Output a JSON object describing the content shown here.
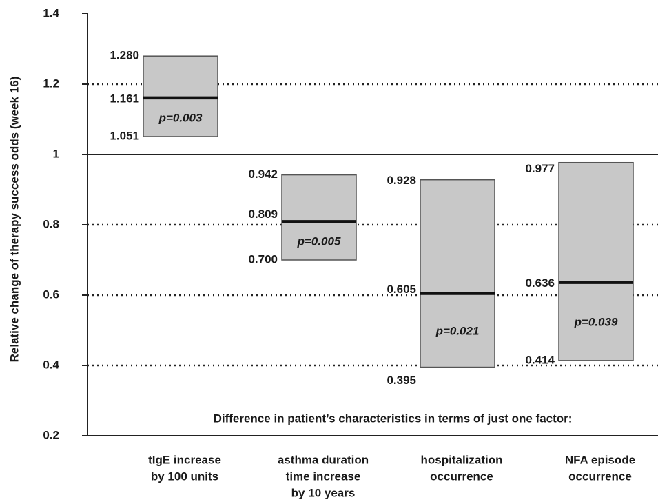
{
  "chart_data": {
    "type": "floating-bar",
    "y_axis_label": "Relative change of therapy success odds (week 16)",
    "x_axis_label": "Difference in patient’s characteristics in terms of just one factor:",
    "categories": [
      [
        "tIgE increase",
        "by 100 units"
      ],
      [
        "asthma duration",
        "time increase",
        "by 10 years"
      ],
      [
        "hospitalization",
        "occurrence"
      ],
      [
        "NFA episode",
        "occurrence"
      ]
    ],
    "values": [
      1.161,
      0.809,
      0.605,
      0.636
    ],
    "value_labels": [
      "1.161",
      "0.809",
      "0.605",
      "0.636"
    ],
    "low": [
      1.051,
      0.7,
      0.395,
      0.414
    ],
    "low_labels": [
      "1.051",
      "0.700",
      "0.395",
      "0.414"
    ],
    "high": [
      1.28,
      0.942,
      0.928,
      0.977
    ],
    "high_labels": [
      "1.280",
      "0.942",
      "0.928",
      "0.977"
    ],
    "p_values": [
      "p=0.003",
      "p=0.005",
      "p=0.021",
      "p=0.039"
    ],
    "color": "#c8c8c8",
    "ylim": [
      0.2,
      1.4
    ],
    "yticks": [
      0.2,
      0.4,
      0.6,
      0.8,
      1,
      1.2,
      1.4
    ],
    "grid": true,
    "reference_line": 1
  }
}
